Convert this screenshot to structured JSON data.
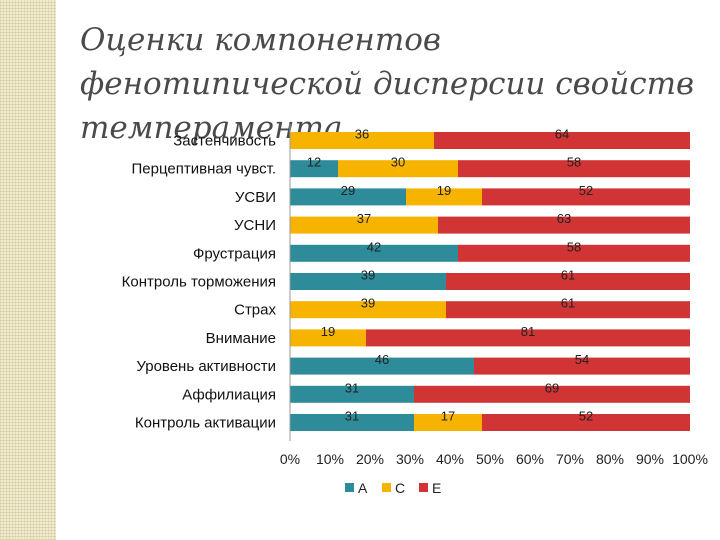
{
  "title": "Оценки компонентов фенотипической дисперсии свойств темперамента",
  "chart_data": {
    "type": "bar",
    "orientation": "horizontal",
    "stacked": "100%",
    "categories": [
      "Застенчивость",
      "Перцептивная чувст.",
      "УСВИ",
      "УСНИ",
      "Фрустрация",
      "Контроль торможения",
      "Страх",
      "Внимание",
      "Уровень активности",
      "Аффилиация",
      "Контроль активации"
    ],
    "series": [
      {
        "name": "A",
        "color": "#2e8b9a",
        "values": [
          0,
          12,
          29,
          0,
          42,
          39,
          0,
          0,
          46,
          31,
          31
        ]
      },
      {
        "name": "C",
        "color": "#f6b400",
        "values": [
          36,
          30,
          19,
          37,
          0,
          0,
          39,
          19,
          0,
          0,
          17
        ]
      },
      {
        "name": "E",
        "color": "#d03434",
        "values": [
          64,
          58,
          52,
          63,
          58,
          61,
          61,
          81,
          54,
          69,
          52
        ]
      }
    ],
    "x_ticks": [
      "0%",
      "10%",
      "20%",
      "30%",
      "40%",
      "50%",
      "60%",
      "70%",
      "80%",
      "90%",
      "100%"
    ],
    "xlim": [
      0,
      100
    ],
    "grid": false,
    "legend_position": "bottom"
  }
}
